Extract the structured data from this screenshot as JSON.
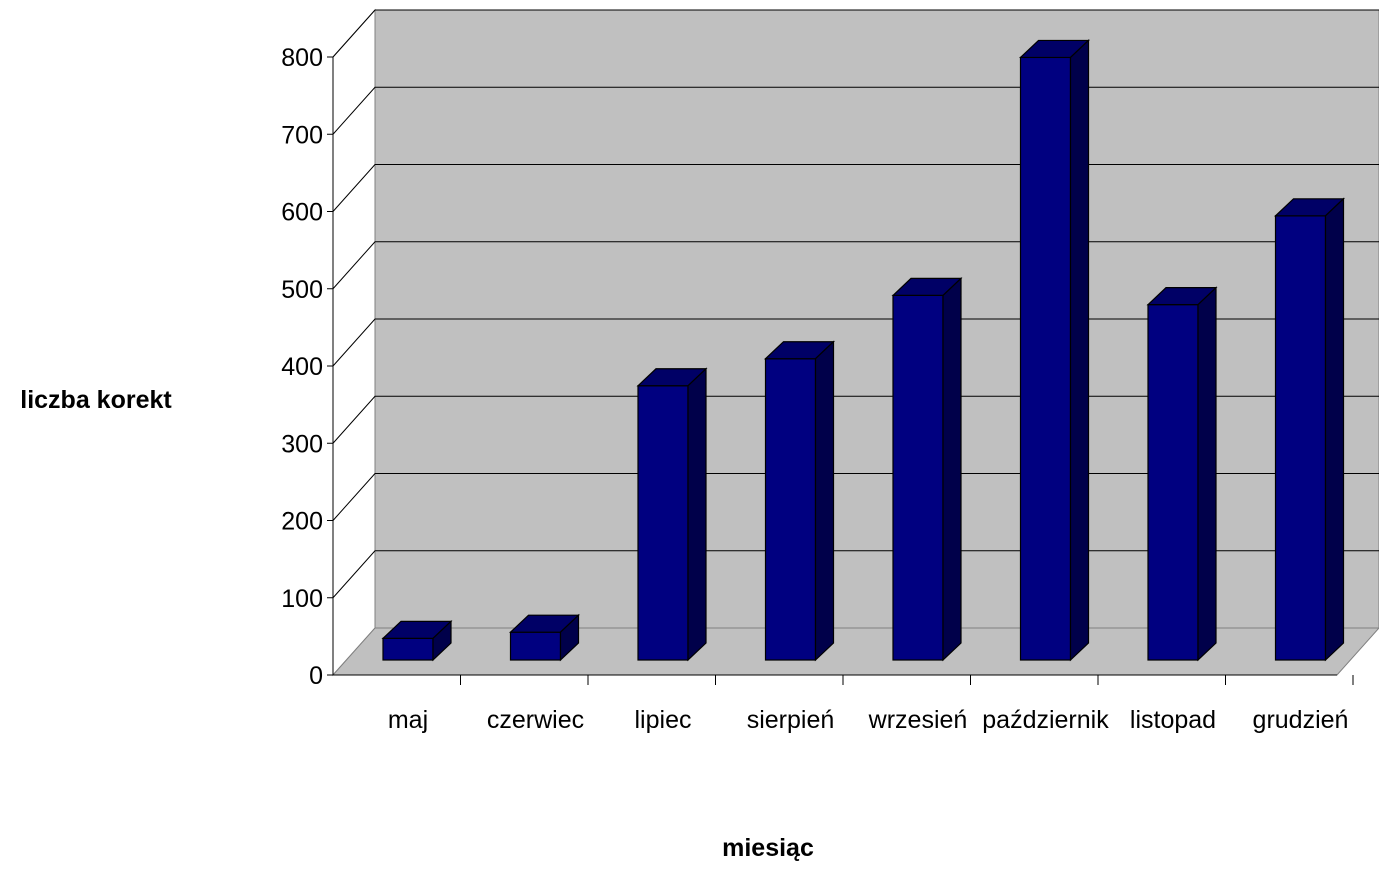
{
  "chart_data": {
    "type": "bar",
    "title": "",
    "xlabel": "miesiąc",
    "ylabel": "liczba korekt",
    "categories": [
      "maj",
      "czerwiec",
      "lipiec",
      "sierpień",
      "wrzesień",
      "październik",
      "listopad",
      "grudzień"
    ],
    "values": [
      28,
      36,
      355,
      390,
      472,
      780,
      460,
      575
    ],
    "ylim": [
      0,
      800
    ],
    "yticks": [
      "0",
      "100",
      "200",
      "300",
      "400",
      "500",
      "600",
      "700",
      "800"
    ],
    "grid": true,
    "legend": "none",
    "style": "3d-column",
    "colors": {
      "bar_front": "#000080",
      "bar_top": "#000066",
      "bar_side": "#00004a",
      "wall": "#c0c0c0",
      "floor": "#c0c0c0",
      "grid": "#000000",
      "side_wall": "#ffffff"
    }
  }
}
